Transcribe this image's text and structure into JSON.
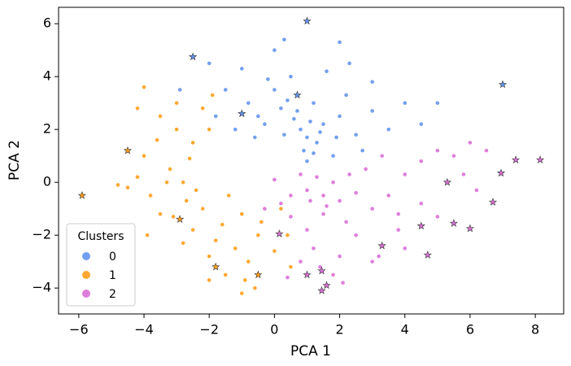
{
  "chart_data": {
    "type": "scatter",
    "x_label": "PCA 1",
    "y_label": "PCA 2",
    "xlim": [
      -6.62,
      8.87
    ],
    "ylim": [
      -4.98,
      6.62
    ],
    "xticks": [
      {
        "value": -6,
        "label": "−6"
      },
      {
        "value": -4,
        "label": "−4"
      },
      {
        "value": -2,
        "label": "−2"
      },
      0,
      2,
      4,
      6,
      8
    ],
    "yticks": [
      {
        "value": -4,
        "label": "−4"
      },
      {
        "value": -2,
        "label": "−2"
      },
      0,
      2,
      4,
      6
    ],
    "legend_title": "Clusters",
    "legend_position": "lower left",
    "series": [
      {
        "name": "0",
        "color": "#6495ed",
        "x": [
          -0.5,
          0.2,
          0.8,
          1.0,
          1.3,
          0.6,
          1.5,
          -1.2,
          -0.8,
          0.0,
          0.5,
          1.2,
          2.0,
          2.5,
          1.8,
          0.9,
          0.3,
          -1.5,
          -2.0,
          -1.0,
          0.0,
          0.3,
          2.0,
          3.0,
          4.0,
          5.0,
          4.5,
          3.0,
          2.2,
          1.6,
          -0.3,
          0.7,
          1.1,
          1.4,
          1.9,
          0.4,
          -0.6,
          2.7,
          -2.9,
          -1.8,
          1.0,
          3.5,
          2.3,
          -0.2,
          1.2
        ],
        "y": [
          2.5,
          2.8,
          2.0,
          1.7,
          1.5,
          2.4,
          2.2,
          2.0,
          3.0,
          3.5,
          4.0,
          3.0,
          2.5,
          1.8,
          1.0,
          1.2,
          1.8,
          3.5,
          4.5,
          4.3,
          5.0,
          5.4,
          5.3,
          3.8,
          3.0,
          3.0,
          2.2,
          2.7,
          3.3,
          4.2,
          2.2,
          2.7,
          2.3,
          1.9,
          1.7,
          3.1,
          1.7,
          1.2,
          3.5,
          2.5,
          0.8,
          2.0,
          4.5,
          3.9,
          1.1
        ],
        "outliers": {
          "x": [
            1.0,
            -2.5,
            7.0,
            0.7,
            -1.0
          ],
          "y": [
            6.1,
            4.75,
            3.7,
            3.3,
            2.6
          ]
        }
      },
      {
        "name": "1",
        "color": "#ff9f1c",
        "x": [
          -3.5,
          -3.0,
          -2.5,
          -4.0,
          -3.2,
          -2.8,
          -3.8,
          -2.2,
          -2.5,
          -1.8,
          -1.2,
          -0.8,
          -2.0,
          -1.5,
          -0.5,
          0.0,
          0.5,
          -3.5,
          -4.2,
          -4.5,
          -3.0,
          -2.2,
          -2.0,
          -3.6,
          -2.7,
          -3.1,
          -1.6,
          -1.0,
          -0.4,
          0.2,
          -0.6,
          -1.0,
          -2.0,
          -2.8,
          -3.9,
          -4.2,
          -4.0,
          -2.6,
          -1.4,
          0.4,
          -0.9,
          -3.3,
          -2.4,
          -4.8,
          -1.9
        ],
        "y": [
          2.5,
          2.0,
          1.5,
          1.0,
          0.5,
          0.0,
          -0.5,
          -1.0,
          -1.8,
          -2.2,
          -2.5,
          -3.0,
          -2.8,
          -3.5,
          -2.0,
          -2.6,
          -3.2,
          -1.2,
          0.2,
          -0.2,
          3.0,
          2.8,
          2.0,
          1.6,
          -0.7,
          -1.3,
          -1.6,
          -1.2,
          -1.5,
          -1.0,
          -4.0,
          -4.2,
          -3.7,
          -2.3,
          -2.0,
          2.8,
          3.6,
          0.9,
          -0.5,
          -2.0,
          -3.7,
          0.0,
          -0.3,
          -0.1,
          3.3
        ],
        "outliers": {
          "x": [
            -4.5,
            -5.9,
            -2.9,
            -1.8,
            -0.5
          ],
          "y": [
            1.2,
            -0.5,
            -1.4,
            -3.2,
            -3.5
          ]
        }
      },
      {
        "name": "2",
        "color": "#da70d6",
        "x": [
          0.5,
          1.0,
          1.5,
          2.0,
          1.3,
          0.8,
          1.8,
          2.5,
          3.0,
          2.2,
          1.5,
          1.0,
          0.5,
          1.2,
          2.0,
          1.8,
          0.8,
          2.5,
          3.5,
          4.0,
          4.5,
          5.0,
          5.5,
          6.0,
          6.5,
          4.5,
          5.0,
          3.8,
          3.2,
          4.0,
          3.0,
          2.8,
          0.2,
          -0.3,
          1.6,
          2.3,
          1.1,
          0.4,
          1.4,
          2.1,
          5.8,
          6.2,
          3.3,
          3.8,
          0.0
        ],
        "y": [
          -0.5,
          -0.3,
          -0.5,
          -0.7,
          0.2,
          0.3,
          0.0,
          -0.4,
          -1.0,
          -1.5,
          -1.2,
          -1.8,
          -1.3,
          -2.5,
          -2.8,
          -3.5,
          -3.0,
          -2.0,
          -0.5,
          0.3,
          0.8,
          1.2,
          1.0,
          1.5,
          1.2,
          -0.8,
          -1.3,
          -1.8,
          -2.8,
          -2.5,
          -3.0,
          0.5,
          -0.8,
          -1.0,
          -0.9,
          0.3,
          -0.7,
          -3.6,
          -3.2,
          -3.8,
          0.3,
          -0.3,
          1.0,
          -1.2,
          0.1
        ],
        "outliers": {
          "x": [
            8.15,
            7.4,
            6.95,
            5.3,
            6.7,
            5.5,
            6.0,
            4.5,
            3.3,
            4.7,
            0.15,
            1.0,
            1.45,
            1.6,
            1.45
          ],
          "y": [
            0.85,
            0.85,
            0.35,
            0.0,
            -0.75,
            -1.55,
            -1.75,
            -1.65,
            -2.4,
            -2.75,
            -1.95,
            -3.5,
            -3.35,
            -3.9,
            -4.1
          ]
        }
      }
    ]
  }
}
